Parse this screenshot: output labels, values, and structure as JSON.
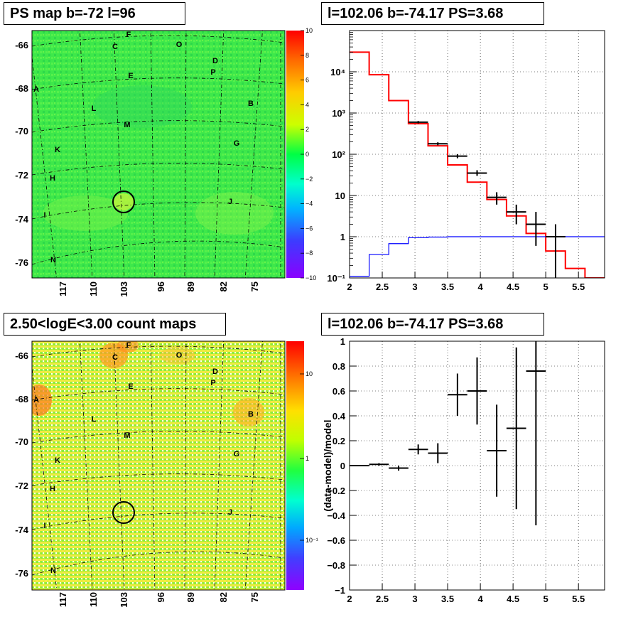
{
  "panels": {
    "map1": {
      "title": "PS map b=-72 l=96"
    },
    "spectrum": {
      "title": "l=102.06 b=-74.17 PS=3.68"
    },
    "map2": {
      "title": "2.50<logE<3.00 count maps"
    },
    "residual": {
      "title": "l=102.06 b=-74.17 PS=3.68"
    }
  },
  "map_axes": {
    "y_ticks": [
      "-66",
      "-68",
      "-70",
      "-72",
      "-74",
      "-76"
    ],
    "x_ticks": [
      "117",
      "110",
      "103",
      "96",
      "89",
      "82",
      "75"
    ],
    "letters": [
      "F",
      "C",
      "O",
      "D",
      "P",
      "E",
      "A",
      "B",
      "L",
      "M",
      "K",
      "G",
      "H",
      "J",
      "I",
      "N"
    ]
  },
  "colorbar1": {
    "ticks": [
      "10",
      "8",
      "6",
      "4",
      "2",
      "0",
      "−2",
      "−4",
      "−6",
      "−8",
      "−10"
    ]
  },
  "colorbar2": {
    "ticks": [
      "10",
      "1",
      "10⁻¹"
    ]
  },
  "chart_data": [
    {
      "type": "line",
      "title": "l=102.06 b=-74.17 PS=3.68",
      "xlim": [
        2,
        5.9
      ],
      "ylim": [
        0.1,
        100000
      ],
      "yscale": "log",
      "x_ticks": [
        "2",
        "2.5",
        "3",
        "3.5",
        "4",
        "4.5",
        "5",
        "5.5"
      ],
      "y_ticks": [
        "10⁻¹",
        "1",
        "10",
        "10²",
        "10³",
        "10⁴"
      ],
      "grid": true,
      "series": [
        {
          "color": "#ff0000",
          "style": "step",
          "edges": [
            2.0,
            2.3,
            2.6,
            2.9,
            3.2,
            3.5,
            3.8,
            4.1,
            4.4,
            4.7,
            5.0,
            5.3,
            5.6,
            5.9
          ],
          "values": [
            30000,
            8500,
            2000,
            550,
            160,
            55,
            21,
            8,
            3.2,
            1.2,
            0.45,
            0.17,
            0.1
          ]
        },
        {
          "color": "#0000ff",
          "style": "step",
          "edges": [
            2.0,
            2.3,
            2.6,
            2.9,
            3.2,
            3.5,
            3.8,
            4.1,
            4.4,
            4.7,
            5.0,
            5.3,
            5.6,
            5.9
          ],
          "values": [
            0.11,
            0.37,
            0.68,
            0.95,
            0.98,
            1.0,
            1.0,
            1.0,
            1.0,
            1.0,
            1.0,
            1.0,
            1.0
          ]
        },
        {
          "color": "#000000",
          "style": "errorbar",
          "points": [
            {
              "x": 3.05,
              "xerr": 0.15,
              "y": 600,
              "ylo": 560,
              "yhi": 640
            },
            {
              "x": 3.35,
              "xerr": 0.15,
              "y": 180,
              "ylo": 165,
              "yhi": 195
            },
            {
              "x": 3.65,
              "xerr": 0.15,
              "y": 90,
              "ylo": 80,
              "yhi": 100
            },
            {
              "x": 3.95,
              "xerr": 0.15,
              "y": 35,
              "ylo": 30,
              "yhi": 41
            },
            {
              "x": 4.25,
              "xerr": 0.15,
              "y": 9,
              "ylo": 6,
              "yhi": 12
            },
            {
              "x": 4.55,
              "xerr": 0.15,
              "y": 4,
              "ylo": 2,
              "yhi": 6
            },
            {
              "x": 4.85,
              "xerr": 0.15,
              "y": 2,
              "ylo": 0.6,
              "yhi": 4
            },
            {
              "x": 5.15,
              "xerr": 0.15,
              "y": 1,
              "ylo": 0.1,
              "yhi": 2
            }
          ]
        }
      ]
    },
    {
      "type": "scatter",
      "title": "l=102.06 b=-74.17 PS=3.68",
      "ylabel": "(data-model)/model",
      "xlim": [
        2,
        5.9
      ],
      "ylim": [
        -1,
        1
      ],
      "x_ticks": [
        "2",
        "2.5",
        "3",
        "3.5",
        "4",
        "4.5",
        "5",
        "5.5"
      ],
      "y_ticks": [
        "1",
        "0.8",
        "0.6",
        "0.4",
        "0.2",
        "0",
        "−0.2",
        "−0.4",
        "−0.6",
        "−0.8",
        "−1"
      ],
      "grid": true,
      "points": [
        {
          "x": 2.15,
          "xerr": 0.15,
          "y": 0.0,
          "err": 0.005
        },
        {
          "x": 2.45,
          "xerr": 0.15,
          "y": 0.01,
          "err": 0.01
        },
        {
          "x": 2.75,
          "xerr": 0.15,
          "y": -0.02,
          "err": 0.02
        },
        {
          "x": 3.05,
          "xerr": 0.15,
          "y": 0.13,
          "err": 0.04
        },
        {
          "x": 3.35,
          "xerr": 0.15,
          "y": 0.1,
          "err": 0.08
        },
        {
          "x": 3.65,
          "xerr": 0.15,
          "y": 0.57,
          "err": 0.17
        },
        {
          "x": 3.95,
          "xerr": 0.15,
          "y": 0.6,
          "err": 0.27
        },
        {
          "x": 4.25,
          "xerr": 0.15,
          "y": 0.12,
          "err": 0.37
        },
        {
          "x": 4.55,
          "xerr": 0.15,
          "y": 0.3,
          "err": 0.65
        },
        {
          "x": 4.85,
          "xerr": 0.15,
          "y": 0.76,
          "err": 1.24
        }
      ]
    }
  ]
}
